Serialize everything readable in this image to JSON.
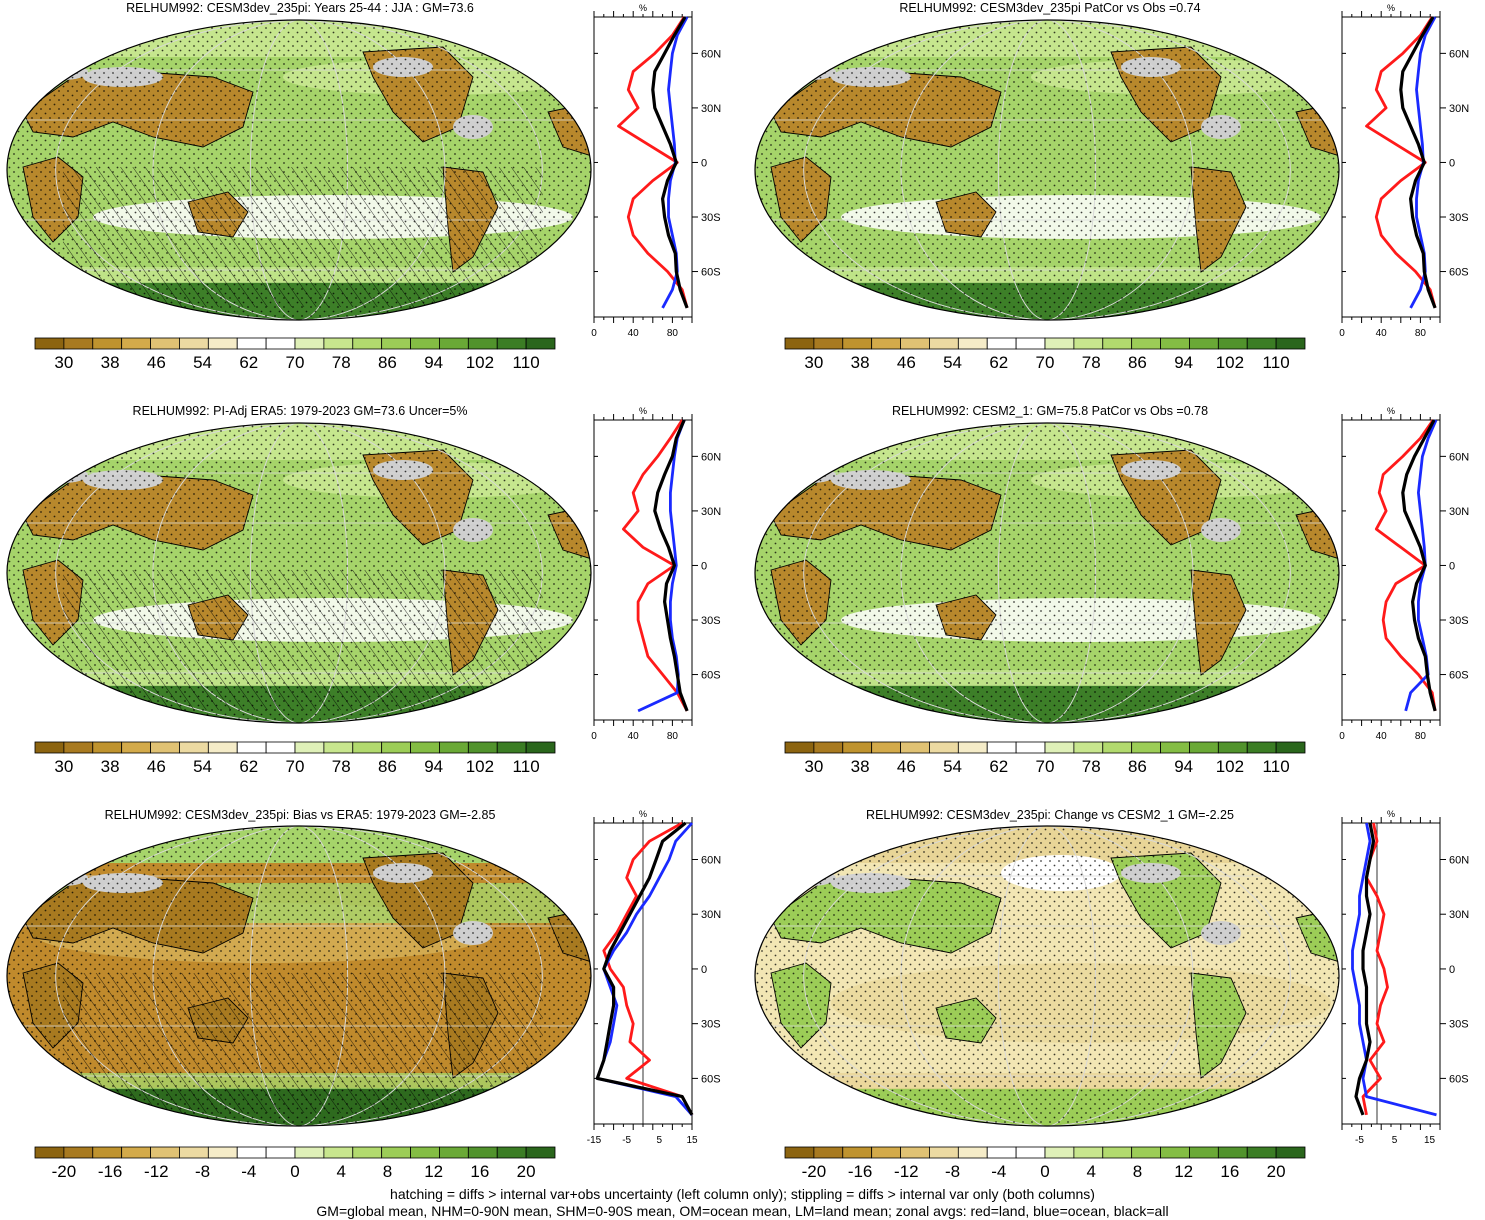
{
  "panels": [
    {
      "id": "p1",
      "title": "RELHUM992: CESM3dev_235pi: Years 25-44 : JJA : GM=73.6",
      "scheme": "abs",
      "hatch": true,
      "stipple": true,
      "range": [
        0,
        100
      ],
      "xticks": [
        "0",
        "40",
        "80"
      ],
      "refline": null
    },
    {
      "id": "p2",
      "title": "RELHUM992: CESM3dev_235pi PatCor vs Obs =0.74",
      "scheme": "abs",
      "hatch": false,
      "stipple": true,
      "range": [
        0,
        100
      ],
      "xticks": [
        "0",
        "40",
        "80"
      ],
      "refline": null
    },
    {
      "id": "p3",
      "title": "RELHUM992: PI-Adj ERA5: 1979-2023 GM=73.6 Uncer=5%",
      "scheme": "abs",
      "hatch": true,
      "stipple": true,
      "range": [
        0,
        100
      ],
      "xticks": [
        "0",
        "40",
        "80"
      ],
      "refline": null
    },
    {
      "id": "p4",
      "title": "RELHUM992: CESM2_1: GM=75.8 PatCor vs Obs =0.78",
      "scheme": "abs",
      "hatch": false,
      "stipple": true,
      "range": [
        0,
        100
      ],
      "xticks": [
        "0",
        "40",
        "80"
      ],
      "refline": null
    },
    {
      "id": "p5",
      "title": "RELHUM992: CESM3dev_235pi: Bias vs ERA5: 1979-2023 GM=-2.85",
      "scheme": "diff",
      "hatch": true,
      "stipple": true,
      "range": [
        -15,
        15
      ],
      "xticks": [
        "-15",
        "-5",
        "5",
        "15"
      ],
      "refline": 0
    },
    {
      "id": "p6",
      "title": "RELHUM992: CESM3dev_235pi: Change vs CESM2_1 GM=-2.25",
      "scheme": "diff2",
      "hatch": false,
      "stipple": true,
      "range": [
        -10,
        18
      ],
      "xticks": [
        "-5",
        "5",
        "15"
      ],
      "refline": 0
    }
  ],
  "zonal_axis": {
    "unit": "%",
    "lat_labels": [
      "60N",
      "30N",
      "0",
      "30S",
      "60S"
    ]
  },
  "colorbars": {
    "abs_labels": [
      "30",
      "38",
      "46",
      "54",
      "62",
      "70",
      "78",
      "86",
      "94",
      "102",
      "110"
    ],
    "diff_labels": [
      "-20",
      "-16",
      "-12",
      "-8",
      "-4",
      "0",
      "4",
      "8",
      "12",
      "16",
      "20"
    ],
    "colors": [
      "#8c6410",
      "#a87a20",
      "#bf932e",
      "#d3aa4a",
      "#e0c274",
      "#ecdaa2",
      "#f5ecc8",
      "#ffffff",
      "#ffffff",
      "#dff0b8",
      "#c8e68e",
      "#b2da6e",
      "#9ccd57",
      "#84bd44",
      "#6aa936",
      "#51932c",
      "#3b7d24",
      "#2a661c"
    ]
  },
  "footer": {
    "line1": "hatching = diffs > internal var+obs uncertainty (left column only); stippling = diffs > internal var only (both columns)",
    "line2": "GM=global mean, NHM=0-90N mean, SHM=0-90S mean, OM=ocean mean, LM=land mean; zonal avgs: red=land, blue=ocean, black=all"
  },
  "chart_data": [
    {
      "type": "line",
      "title": "RELHUM992: CESM3dev_235pi: Years 25-44 : JJA : GM=73.6",
      "xlabel": "%",
      "xlim": [
        0,
        100
      ],
      "ylim": [
        -90,
        90
      ],
      "lat": [
        80,
        70,
        60,
        50,
        40,
        30,
        20,
        10,
        0,
        -10,
        -20,
        -30,
        -40,
        -50,
        -60,
        -70,
        -80
      ],
      "series": [
        {
          "name": "land",
          "values": [
            92,
            80,
            62,
            40,
            35,
            45,
            25,
            55,
            85,
            60,
            40,
            35,
            40,
            55,
            75,
            90,
            95
          ]
        },
        {
          "name": "ocean",
          "values": [
            95,
            85,
            80,
            78,
            76,
            78,
            80,
            82,
            83,
            78,
            76,
            76,
            80,
            84,
            85,
            80,
            70
          ]
        },
        {
          "name": "all",
          "values": [
            93,
            82,
            72,
            62,
            60,
            62,
            70,
            78,
            84,
            75,
            70,
            72,
            76,
            83,
            84,
            88,
            95
          ]
        }
      ]
    },
    {
      "type": "line",
      "title": "RELHUM992: CESM3dev_235pi PatCor vs Obs =0.74",
      "xlabel": "%",
      "xlim": [
        0,
        100
      ],
      "ylim": [
        -90,
        90
      ],
      "lat": [
        80,
        70,
        60,
        50,
        40,
        30,
        20,
        10,
        0,
        -10,
        -20,
        -30,
        -40,
        -50,
        -60,
        -70,
        -80
      ],
      "series": [
        {
          "name": "land",
          "values": [
            92,
            80,
            62,
            40,
            35,
            45,
            25,
            55,
            85,
            60,
            40,
            35,
            40,
            55,
            75,
            90,
            95
          ]
        },
        {
          "name": "ocean",
          "values": [
            95,
            85,
            80,
            78,
            76,
            78,
            80,
            82,
            83,
            78,
            76,
            76,
            80,
            84,
            85,
            80,
            70
          ]
        },
        {
          "name": "all",
          "values": [
            93,
            82,
            72,
            62,
            60,
            62,
            70,
            78,
            84,
            75,
            70,
            72,
            76,
            83,
            84,
            88,
            95
          ]
        }
      ]
    },
    {
      "type": "line",
      "title": "RELHUM992: PI-Adj ERA5: 1979-2023 GM=73.6 Uncer=5%",
      "xlabel": "%",
      "xlim": [
        0,
        100
      ],
      "ylim": [
        -90,
        90
      ],
      "lat": [
        80,
        70,
        60,
        50,
        40,
        30,
        20,
        10,
        0,
        -10,
        -20,
        -30,
        -40,
        -50,
        -60,
        -70,
        -80
      ],
      "series": [
        {
          "name": "land",
          "values": [
            90,
            78,
            65,
            50,
            40,
            45,
            30,
            50,
            82,
            55,
            45,
            45,
            50,
            55,
            70,
            85,
            95
          ]
        },
        {
          "name": "ocean",
          "values": [
            92,
            85,
            82,
            80,
            78,
            78,
            80,
            82,
            84,
            80,
            78,
            78,
            80,
            84,
            86,
            85,
            45
          ]
        },
        {
          "name": "all",
          "values": [
            92,
            84,
            80,
            72,
            65,
            62,
            68,
            76,
            82,
            74,
            72,
            75,
            78,
            82,
            85,
            88,
            95
          ]
        }
      ]
    },
    {
      "type": "line",
      "title": "RELHUM992: CESM2_1: GM=75.8 PatCor vs Obs =0.78",
      "xlabel": "%",
      "xlim": [
        0,
        100
      ],
      "ylim": [
        -90,
        90
      ],
      "lat": [
        80,
        70,
        60,
        50,
        40,
        30,
        20,
        10,
        0,
        -10,
        -20,
        -30,
        -40,
        -50,
        -60,
        -70,
        -80
      ],
      "series": [
        {
          "name": "land",
          "values": [
            93,
            80,
            62,
            42,
            38,
            45,
            35,
            60,
            85,
            55,
            45,
            42,
            45,
            60,
            78,
            92,
            95
          ]
        },
        {
          "name": "ocean",
          "values": [
            96,
            88,
            82,
            80,
            78,
            80,
            82,
            84,
            85,
            80,
            78,
            78,
            82,
            86,
            88,
            70,
            65
          ]
        },
        {
          "name": "all",
          "values": [
            94,
            84,
            74,
            66,
            62,
            64,
            72,
            80,
            85,
            76,
            72,
            74,
            78,
            85,
            87,
            90,
            95
          ]
        }
      ]
    },
    {
      "type": "line",
      "title": "RELHUM992: CESM3dev_235pi: Bias vs ERA5: 1979-2023 GM=-2.85",
      "xlabel": "%",
      "xlim": [
        -15,
        15
      ],
      "ylim": [
        -90,
        90
      ],
      "lat": [
        80,
        70,
        60,
        50,
        40,
        30,
        20,
        10,
        0,
        -10,
        -20,
        -30,
        -40,
        -50,
        -60,
        -70,
        -80
      ],
      "series": [
        {
          "name": "land",
          "values": [
            12,
            2,
            -3,
            -5,
            -2,
            -5,
            -8,
            -12,
            -10,
            -6,
            -5,
            -3,
            -4,
            2,
            -5,
            12,
            15
          ]
        },
        {
          "name": "ocean",
          "values": [
            15,
            10,
            8,
            5,
            2,
            -2,
            -5,
            -9,
            -12,
            -10,
            -8,
            -9,
            -10,
            -12,
            -14,
            10,
            15
          ]
        },
        {
          "name": "all",
          "values": [
            13,
            6,
            4,
            2,
            -1,
            -4,
            -7,
            -10,
            -12,
            -9,
            -9,
            -10,
            -11,
            -12,
            -14,
            12,
            15
          ]
        }
      ]
    },
    {
      "type": "line",
      "title": "RELHUM992: CESM3dev_235pi: Change vs CESM2_1 GM=-2.25",
      "xlabel": "%",
      "xlim": [
        -10,
        18
      ],
      "ylim": [
        -90,
        90
      ],
      "lat": [
        80,
        70,
        60,
        50,
        40,
        30,
        20,
        10,
        0,
        -10,
        -20,
        -30,
        -40,
        -50,
        -60,
        -70,
        -80
      ],
      "series": [
        {
          "name": "land",
          "values": [
            -1,
            0,
            -2,
            -3,
            0,
            2,
            1,
            0,
            2,
            3,
            1,
            0,
            2,
            -2,
            1,
            -4,
            -3
          ]
        },
        {
          "name": "ocean",
          "values": [
            -3,
            -2,
            -3,
            -4,
            -5,
            -5,
            -6,
            -7,
            -7,
            -6,
            -5,
            -5,
            -4,
            -3,
            -4,
            -3,
            17
          ]
        },
        {
          "name": "all",
          "values": [
            -2,
            -1,
            -2,
            -3,
            -3,
            -2,
            -3,
            -4,
            -4,
            -3,
            -3,
            -3,
            -2,
            -3,
            -5,
            -6,
            -4
          ]
        }
      ]
    }
  ]
}
